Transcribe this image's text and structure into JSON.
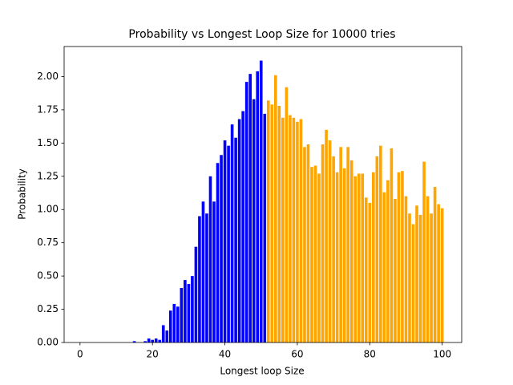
{
  "chart_data": {
    "type": "bar",
    "title": "Probability vs Longest Loop Size for 10000 tries",
    "x_label": "Longest loop Size",
    "y_label": "Probability",
    "series": [
      {
        "color": "#0000ff",
        "x": [
          1,
          2,
          3,
          4,
          5,
          6,
          7,
          8,
          9,
          10,
          11,
          12,
          13,
          14,
          15,
          16,
          17,
          18,
          19,
          20,
          21,
          22,
          23,
          24,
          25,
          26,
          27,
          28,
          29,
          30,
          31,
          32,
          33,
          34,
          35,
          36,
          37,
          38,
          39,
          40,
          41,
          42,
          43,
          44,
          45,
          46,
          47,
          48,
          49,
          50,
          51
        ],
        "values": [
          0,
          0,
          0,
          0,
          0,
          0,
          0,
          0,
          0,
          0,
          0,
          0,
          0,
          0,
          0.01,
          0,
          0,
          0.01,
          0.03,
          0.02,
          0.03,
          0.02,
          0.13,
          0.09,
          0.24,
          0.29,
          0.27,
          0.41,
          0.47,
          0.44,
          0.5,
          0.72,
          0.95,
          1.06,
          0.97,
          1.25,
          1.06,
          1.35,
          1.41,
          1.52,
          1.48,
          1.64,
          1.54,
          1.68,
          1.74,
          1.96,
          2.02,
          1.83,
          2.04,
          2.12,
          1.72
        ]
      },
      {
        "color": "#ffa500",
        "x": [
          52,
          53,
          54,
          55,
          56,
          57,
          58,
          59,
          60,
          61,
          62,
          63,
          64,
          65,
          66,
          67,
          68,
          69,
          70,
          71,
          72,
          73,
          74,
          75,
          76,
          77,
          78,
          79,
          80,
          81,
          82,
          83,
          84,
          85,
          86,
          87,
          88,
          89,
          90,
          91,
          92,
          93,
          94,
          95,
          96,
          97,
          98,
          99,
          100
        ],
        "values": [
          1.82,
          1.79,
          2.01,
          1.78,
          1.69,
          1.92,
          1.71,
          1.69,
          1.66,
          1.68,
          1.47,
          1.49,
          1.32,
          1.33,
          1.27,
          1.49,
          1.6,
          1.52,
          1.4,
          1.28,
          1.47,
          1.31,
          1.47,
          1.37,
          1.25,
          1.27,
          1.27,
          1.09,
          1.05,
          1.28,
          1.4,
          1.48,
          1.13,
          1.22,
          1.46,
          1.08,
          1.28,
          1.29,
          1.1,
          0.97,
          0.89,
          1.03,
          0.96,
          1.36,
          1.1,
          0.97,
          1.17,
          1.04,
          1.01
        ]
      }
    ],
    "xlim": [
      -4.39,
      105.39
    ],
    "xticks": [
      0,
      20,
      40,
      60,
      80,
      100
    ],
    "ylim": [
      0,
      2.226
    ],
    "yticks": [
      {
        "value": 0,
        "label": "0.00"
      },
      {
        "value": 0.25,
        "label": "0.25"
      },
      {
        "value": 0.5,
        "label": "0.50"
      },
      {
        "value": 0.75,
        "label": "0.75"
      },
      {
        "value": 1,
        "label": "1.00"
      },
      {
        "value": 1.25,
        "label": "1.25"
      },
      {
        "value": 1.5,
        "label": "1.50"
      },
      {
        "value": 1.75,
        "label": "1.75"
      },
      {
        "value": 2,
        "label": "2.00"
      }
    ],
    "grid": false
  }
}
